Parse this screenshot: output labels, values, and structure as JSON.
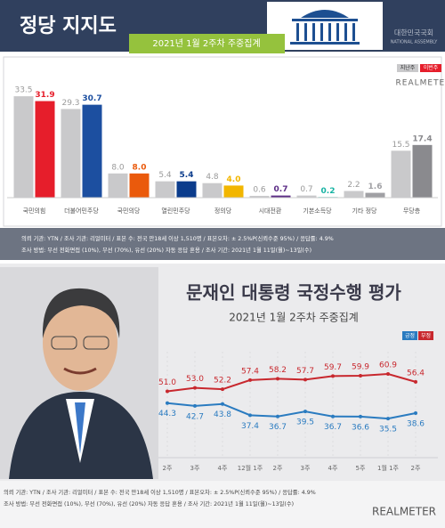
{
  "chart_data": [
    {
      "type": "bar",
      "title": "정당 지지도",
      "subtitle": "2021년 1월 2주차 주중집계",
      "logo_text": "대한민국국회",
      "logo_subtext": "NATIONAL ASSEMBLY",
      "brand": "REALMETER",
      "categories": [
        "국민의힘",
        "더불어민주당",
        "국민의당",
        "열린민주당",
        "정의당",
        "시대전환",
        "기본소득당",
        "기타 정당",
        "무당층"
      ],
      "series": [
        {
          "name": "지난주",
          "color": "#c9c9cb",
          "values": [
            33.5,
            29.3,
            8.0,
            5.4,
            4.8,
            0.6,
            0.7,
            2.2,
            15.5
          ],
          "value_labels": [
            "33.5",
            "29.3",
            "8.0",
            "5.4",
            "4.8",
            "0.6",
            "0.7",
            "2.2",
            "15.5"
          ]
        },
        {
          "name": "이번주",
          "color": "#e61e2b",
          "colors": [
            "#e61e2b",
            "#1c4fa0",
            "#ea5a0c",
            "#0b3c8c",
            "#f2b600",
            "#5c2d86",
            "#17b3a3",
            "#a0a0a4",
            "#8a8a8e"
          ],
          "values": [
            31.9,
            30.7,
            8.0,
            5.4,
            4.0,
            0.7,
            0.2,
            1.6,
            17.4
          ],
          "value_labels": [
            "31.9",
            "30.7",
            "8.0",
            "5.4",
            "4.0",
            "0.7",
            "0.2",
            "1.6",
            "17.4"
          ]
        }
      ],
      "notes": [
        "의뢰 기관: YTN / 조사 기관: 리얼미터 / 표본 수: 전국 만18세 이상 1,510명 / 표본오차: ± 2.5%P(신뢰수준 95%) / 응답률: 4.9%",
        "조사 방법: 무선 전화면접 (10%), 무선 (70%), 유선 (20%) 자동 응답 혼용 / 조사 기간: 2021년 1월 11일(월)~13일(수)"
      ]
    },
    {
      "type": "line",
      "title": "문재인 대통령 국정수행 평가",
      "subtitle": "2021년 1월 2주차 주중집계",
      "brand": "REALMETER",
      "categories": [
        "2주",
        "3주",
        "4주",
        "12월 1주",
        "2주",
        "3주",
        "4주",
        "5주",
        "1월 1주",
        "2주"
      ],
      "series": [
        {
          "name": "긍정",
          "color": "#2a7bc0",
          "values": [
            44.3,
            42.7,
            43.8,
            37.4,
            36.7,
            39.5,
            36.7,
            36.6,
            35.5,
            38.6
          ],
          "value_labels": [
            "44.3",
            "42.7",
            "43.8",
            "37.4",
            "36.7",
            "39.5",
            "36.7",
            "36.6",
            "35.5",
            "38.6"
          ]
        },
        {
          "name": "부정",
          "color": "#c8282e",
          "values": [
            51.0,
            53.0,
            52.2,
            57.4,
            58.2,
            57.7,
            59.7,
            59.9,
            60.9,
            56.4
          ],
          "value_labels": [
            "51.0",
            "53.0",
            "52.2",
            "57.4",
            "58.2",
            "57.7",
            "59.7",
            "59.9",
            "60.9",
            "56.4"
          ]
        }
      ],
      "notes": [
        "의뢰 기관: YTN / 조사 기관: 리얼미터 / 표본 수: 전국 만18세 이상 1,510명 / 표본오차: ± 2.5%P(신뢰수준 95%) / 응답률: 4.9%",
        "조사 방법: 무선 전화면접 (10%), 무선 (70%), 유선 (20%) 자동 응답 혼용 / 조사 기간: 2021년 1월 11일(월)~13일(수)"
      ]
    }
  ]
}
